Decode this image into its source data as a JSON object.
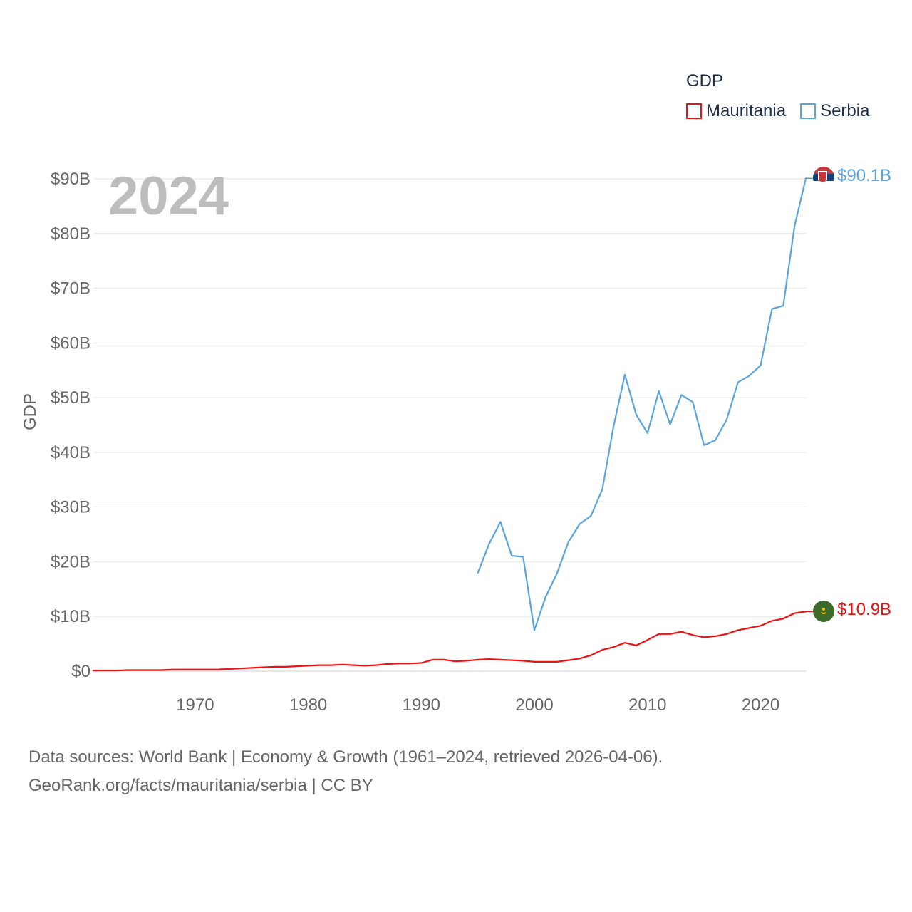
{
  "legend": {
    "title": "GDP",
    "items": [
      {
        "name": "Mauritania",
        "color": "#ee1111"
      },
      {
        "name": "Serbia",
        "color": "#5ba3e0"
      }
    ]
  },
  "year_label": "2024",
  "end_labels": {
    "serbia": "$90.1B",
    "mauritania": "$10.9B"
  },
  "footer": {
    "line1": "Data sources: World Bank | Economy & Growth (1961–2024, retrieved 2026-04-06).",
    "line2": "GeoRank.org/facts/mauritania/serbia | CC BY"
  },
  "chart_data": {
    "type": "line",
    "title": "",
    "xlabel": "",
    "ylabel": "GDP",
    "xlim": [
      1961,
      2024
    ],
    "ylim": [
      0,
      90
    ],
    "y_unit": "billion USD",
    "y_ticks": [
      {
        "value": 0,
        "label": "$0"
      },
      {
        "value": 10,
        "label": "$10B"
      },
      {
        "value": 20,
        "label": "$20B"
      },
      {
        "value": 30,
        "label": "$30B"
      },
      {
        "value": 40,
        "label": "$40B"
      },
      {
        "value": 50,
        "label": "$50B"
      },
      {
        "value": 60,
        "label": "$60B"
      },
      {
        "value": 70,
        "label": "$70B"
      },
      {
        "value": 80,
        "label": "$80B"
      },
      {
        "value": 90,
        "label": "$90B"
      }
    ],
    "x_ticks": [
      {
        "value": 1970,
        "label": "1970"
      },
      {
        "value": 1980,
        "label": "1980"
      },
      {
        "value": 1990,
        "label": "1990"
      },
      {
        "value": 2000,
        "label": "2000"
      },
      {
        "value": 2010,
        "label": "2010"
      },
      {
        "value": 2020,
        "label": "2020"
      }
    ],
    "grid": true,
    "series": [
      {
        "name": "Mauritania",
        "color": "#ee1111",
        "points": [
          [
            1961,
            0.1
          ],
          [
            1962,
            0.1
          ],
          [
            1963,
            0.1
          ],
          [
            1964,
            0.2
          ],
          [
            1965,
            0.2
          ],
          [
            1966,
            0.2
          ],
          [
            1967,
            0.2
          ],
          [
            1968,
            0.3
          ],
          [
            1969,
            0.3
          ],
          [
            1970,
            0.3
          ],
          [
            1971,
            0.3
          ],
          [
            1972,
            0.3
          ],
          [
            1973,
            0.4
          ],
          [
            1974,
            0.5
          ],
          [
            1975,
            0.6
          ],
          [
            1976,
            0.7
          ],
          [
            1977,
            0.8
          ],
          [
            1978,
            0.8
          ],
          [
            1979,
            0.9
          ],
          [
            1980,
            1.0
          ],
          [
            1981,
            1.1
          ],
          [
            1982,
            1.1
          ],
          [
            1983,
            1.2
          ],
          [
            1984,
            1.1
          ],
          [
            1985,
            1.0
          ],
          [
            1986,
            1.1
          ],
          [
            1987,
            1.3
          ],
          [
            1988,
            1.4
          ],
          [
            1989,
            1.4
          ],
          [
            1990,
            1.5
          ],
          [
            1991,
            2.1
          ],
          [
            1992,
            2.1
          ],
          [
            1993,
            1.8
          ],
          [
            1994,
            1.9
          ],
          [
            1995,
            2.1
          ],
          [
            1996,
            2.2
          ],
          [
            1997,
            2.1
          ],
          [
            1998,
            2.0
          ],
          [
            1999,
            1.9
          ],
          [
            2000,
            1.7
          ],
          [
            2001,
            1.7
          ],
          [
            2002,
            1.7
          ],
          [
            2003,
            2.0
          ],
          [
            2004,
            2.3
          ],
          [
            2005,
            2.9
          ],
          [
            2006,
            3.9
          ],
          [
            2007,
            4.4
          ],
          [
            2008,
            5.2
          ],
          [
            2009,
            4.7
          ],
          [
            2010,
            5.7
          ],
          [
            2011,
            6.8
          ],
          [
            2012,
            6.8
          ],
          [
            2013,
            7.2
          ],
          [
            2014,
            6.6
          ],
          [
            2015,
            6.2
          ],
          [
            2016,
            6.4
          ],
          [
            2017,
            6.8
          ],
          [
            2018,
            7.5
          ],
          [
            2019,
            7.9
          ],
          [
            2020,
            8.3
          ],
          [
            2021,
            9.2
          ],
          [
            2022,
            9.6
          ],
          [
            2023,
            10.6
          ],
          [
            2024,
            10.9
          ]
        ]
      },
      {
        "name": "Serbia",
        "color": "#5ba3e0",
        "points": [
          [
            1995,
            18.0
          ],
          [
            1996,
            23.3
          ],
          [
            1997,
            27.3
          ],
          [
            1998,
            21.1
          ],
          [
            1999,
            20.9
          ],
          [
            2000,
            7.5
          ],
          [
            2001,
            13.6
          ],
          [
            2002,
            17.9
          ],
          [
            2003,
            23.6
          ],
          [
            2004,
            26.9
          ],
          [
            2005,
            28.4
          ],
          [
            2006,
            33.2
          ],
          [
            2007,
            44.8
          ],
          [
            2008,
            54.2
          ],
          [
            2009,
            46.9
          ],
          [
            2010,
            43.5
          ],
          [
            2011,
            51.2
          ],
          [
            2012,
            45.1
          ],
          [
            2013,
            50.5
          ],
          [
            2014,
            49.2
          ],
          [
            2015,
            41.3
          ],
          [
            2016,
            42.2
          ],
          [
            2017,
            46.0
          ],
          [
            2018,
            52.8
          ],
          [
            2019,
            54.0
          ],
          [
            2020,
            55.9
          ],
          [
            2021,
            66.2
          ],
          [
            2022,
            66.8
          ],
          [
            2023,
            81.3
          ],
          [
            2024,
            90.1
          ]
        ]
      }
    ]
  }
}
